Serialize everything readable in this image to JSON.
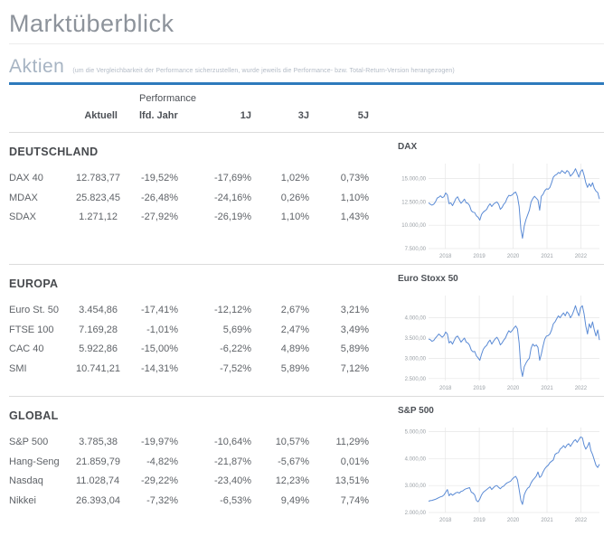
{
  "page": {
    "title": "Marktüberblick"
  },
  "aktien": {
    "heading": "Aktien",
    "note": "(um die Vergleichbarkeit der Performance sicherzustellen, wurde jeweils die Performance- bzw. Total-Return-Version herangezogen)"
  },
  "table": {
    "header": {
      "performance": "Performance",
      "aktuell": "Aktuell",
      "ytd": "lfd. Jahr",
      "y1": "1J",
      "y3": "3J",
      "y5": "5J"
    }
  },
  "sections": [
    {
      "id": "deutschland",
      "title": "DEUTSCHLAND",
      "rows": [
        {
          "name": "DAX 40",
          "aktuell": "12.783,77",
          "ytd": "-19,52%",
          "y1": "-17,69%",
          "y3": "1,02%",
          "y5": "0,73%"
        },
        {
          "name": "MDAX",
          "aktuell": "25.823,45",
          "ytd": "-26,48%",
          "y1": "-24,16%",
          "y3": "0,26%",
          "y5": "1,10%"
        },
        {
          "name": "SDAX",
          "aktuell": "1.271,12",
          "ytd": "-27,92%",
          "y1": "-26,19%",
          "y3": "1,10%",
          "y5": "1,43%"
        }
      ]
    },
    {
      "id": "europa",
      "title": "EUROPA",
      "rows": [
        {
          "name": "Euro St. 50",
          "aktuell": "3.454,86",
          "ytd": "-17,41%",
          "y1": "-12,12%",
          "y3": "2,67%",
          "y5": "3,21%"
        },
        {
          "name": "FTSE 100",
          "aktuell": "7.169,28",
          "ytd": "-1,01%",
          "y1": "5,69%",
          "y3": "2,47%",
          "y5": "3,49%"
        },
        {
          "name": "CAC 40",
          "aktuell": "5.922,86",
          "ytd": "-15,00%",
          "y1": "-6,22%",
          "y3": "4,89%",
          "y5": "5,89%"
        },
        {
          "name": "SMI",
          "aktuell": "10.741,21",
          "ytd": "-14,31%",
          "y1": "-7,52%",
          "y3": "5,89%",
          "y5": "7,12%"
        }
      ]
    },
    {
      "id": "global",
      "title": "GLOBAL",
      "rows": [
        {
          "name": "S&P 500",
          "aktuell": "3.785,38",
          "ytd": "-19,97%",
          "y1": "-10,64%",
          "y3": "10,57%",
          "y5": "11,29%"
        },
        {
          "name": "Hang-Seng",
          "aktuell": "21.859,79",
          "ytd": "-4,82%",
          "y1": "-21,87%",
          "y3": "-5,67%",
          "y5": "0,01%"
        },
        {
          "name": "Nasdaq",
          "aktuell": "11.028,74",
          "ytd": "-29,22%",
          "y1": "-23,40%",
          "y3": "12,23%",
          "y5": "13,51%"
        },
        {
          "name": "Nikkei",
          "aktuell": "26.393,04",
          "ytd": "-7,32%",
          "y1": "-6,53%",
          "y3": "9,49%",
          "y5": "7,74%"
        }
      ]
    }
  ],
  "chart_data": [
    {
      "type": "line",
      "title": "DAX",
      "x_range": [
        2017.5,
        2022.55
      ],
      "x_tick_positions": [
        2018,
        2019,
        2020,
        2021,
        2022
      ],
      "x_tick_labels": [
        "2018",
        "2019",
        "2020",
        "2021",
        "2022"
      ],
      "ylim": [
        7500,
        16600
      ],
      "y_ticks": [
        {
          "value": 7500,
          "label": "7.500,00"
        },
        {
          "value": 10000,
          "label": "10.000,00"
        },
        {
          "value": 12500,
          "label": "12.500,00"
        },
        {
          "value": 15000,
          "label": "15.000,00"
        }
      ],
      "legend": false,
      "grid": true,
      "values": [
        12400,
        12250,
        12150,
        12250,
        12500,
        12900,
        13000,
        13150,
        12950,
        13050,
        13450,
        13250,
        12300,
        12400,
        12100,
        12450,
        12850,
        13050,
        12650,
        12350,
        12550,
        12800,
        12400,
        12350,
        12100,
        11550,
        11400,
        11350,
        11000,
        10850,
        10550,
        11150,
        11400,
        11550,
        11700,
        12050,
        12300,
        12000,
        12250,
        12400,
        12500,
        12250,
        11700,
        11900,
        12250,
        12450,
        12900,
        13200,
        13150,
        13250,
        13450,
        13550,
        13100,
        12000,
        9600,
        8600,
        9900,
        10600,
        11100,
        11600,
        12500,
        12850,
        13100,
        12900,
        12700,
        11600,
        13100,
        13300,
        13700,
        13900,
        13850,
        14050,
        14550,
        15150,
        15350,
        15450,
        15650,
        15550,
        15850,
        15700,
        15550,
        15850,
        15700,
        15250,
        15450,
        15700,
        16050,
        15600,
        15150,
        15750,
        15950,
        15350,
        14550,
        14050,
        14450,
        14150,
        14550,
        13950,
        13650,
        13500,
        12800
      ]
    },
    {
      "type": "line",
      "title": "Euro Stoxx 50",
      "x_range": [
        2017.5,
        2022.55
      ],
      "x_tick_positions": [
        2018,
        2019,
        2020,
        2021,
        2022
      ],
      "x_tick_labels": [
        "2018",
        "2019",
        "2020",
        "2021",
        "2022"
      ],
      "ylim": [
        2450,
        4550
      ],
      "y_ticks": [
        {
          "value": 2500,
          "label": "2.500,00"
        },
        {
          "value": 3000,
          "label": "3.000,00"
        },
        {
          "value": 3500,
          "label": "3.500,00"
        },
        {
          "value": 4000,
          "label": "4.000,00"
        }
      ],
      "legend": false,
      "grid": true,
      "values": [
        3480,
        3460,
        3420,
        3440,
        3500,
        3550,
        3600,
        3560,
        3520,
        3560,
        3650,
        3600,
        3380,
        3420,
        3350,
        3440,
        3520,
        3550,
        3480,
        3400,
        3450,
        3500,
        3400,
        3380,
        3320,
        3200,
        3160,
        3170,
        3060,
        3010,
        2950,
        3100,
        3220,
        3280,
        3320,
        3400,
        3450,
        3350,
        3420,
        3480,
        3520,
        3450,
        3330,
        3380,
        3450,
        3500,
        3600,
        3680,
        3640,
        3690,
        3750,
        3800,
        3730,
        3380,
        2750,
        2550,
        2790,
        2880,
        2950,
        3000,
        3250,
        3350,
        3300,
        3330,
        3270,
        2950,
        3100,
        3300,
        3470,
        3550,
        3560,
        3600,
        3700,
        3850,
        3900,
        3980,
        4050,
        4000,
        4070,
        4120,
        4050,
        4150,
        4100,
        4000,
        4070,
        4180,
        4300,
        4150,
        4050,
        4250,
        4300,
        4100,
        3800,
        3600,
        3850,
        3750,
        3900,
        3700,
        3550,
        3700,
        3450
      ]
    },
    {
      "type": "line",
      "title": "S&P 500",
      "x_range": [
        2017.5,
        2022.55
      ],
      "x_tick_positions": [
        2018,
        2019,
        2020,
        2021,
        2022
      ],
      "x_tick_labels": [
        "2018",
        "2019",
        "2020",
        "2021",
        "2022"
      ],
      "ylim": [
        2000,
        5150
      ],
      "y_ticks": [
        {
          "value": 2000,
          "label": "2.000,00"
        },
        {
          "value": 3000,
          "label": "3.000,00"
        },
        {
          "value": 4000,
          "label": "4.000,00"
        },
        {
          "value": 5000,
          "label": "5.000,00"
        }
      ],
      "legend": false,
      "grid": true,
      "values": [
        2420,
        2440,
        2450,
        2470,
        2490,
        2520,
        2550,
        2580,
        2600,
        2650,
        2750,
        2850,
        2620,
        2700,
        2640,
        2680,
        2730,
        2750,
        2720,
        2780,
        2800,
        2850,
        2880,
        2900,
        2920,
        2750,
        2720,
        2650,
        2450,
        2400,
        2500,
        2650,
        2750,
        2800,
        2850,
        2900,
        2950,
        2850,
        2920,
        2980,
        3000,
        2930,
        2880,
        2950,
        2980,
        3050,
        3100,
        3130,
        3160,
        3240,
        3300,
        3340,
        3220,
        2850,
        2450,
        2300,
        2650,
        2800,
        2900,
        2950,
        3100,
        3200,
        3270,
        3350,
        3500,
        3300,
        3350,
        3500,
        3620,
        3700,
        3750,
        3850,
        3900,
        3950,
        4150,
        4200,
        4220,
        4350,
        4400,
        4480,
        4400,
        4500,
        4550,
        4450,
        4550,
        4650,
        4700,
        4600,
        4700,
        4800,
        4770,
        4500,
        4350,
        4450,
        4600,
        4300,
        4150,
        3950,
        3750,
        3670,
        3790
      ]
    }
  ],
  "colors": {
    "accent": "#2e7abc",
    "chart_line": "#5b8bd5",
    "grid": "#e6e6e6",
    "tick_text": "#9aa0a6"
  }
}
